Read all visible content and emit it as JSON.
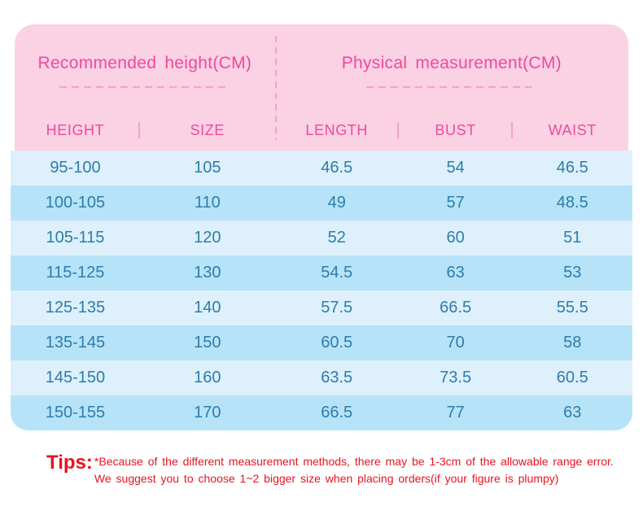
{
  "chart_data": {
    "type": "table",
    "title_left": "Recommended height(CM)",
    "title_right": "Physical measurement(CM)",
    "columns": [
      "HEIGHT",
      "SIZE",
      "LENGTH",
      "BUST",
      "WAIST"
    ],
    "rows": [
      [
        "95-100",
        "105",
        "46.5",
        "54",
        "46.5"
      ],
      [
        "100-105",
        "110",
        "49",
        "57",
        "48.5"
      ],
      [
        "105-115",
        "120",
        "52",
        "60",
        "51"
      ],
      [
        "115-125",
        "130",
        "54.5",
        "63",
        "53"
      ],
      [
        "125-135",
        "140",
        "57.5",
        "66.5",
        "55.5"
      ],
      [
        "135-145",
        "150",
        "60.5",
        "70",
        "58"
      ],
      [
        "145-150",
        "160",
        "63.5",
        "73.5",
        "60.5"
      ],
      [
        "150-155",
        "170",
        "66.5",
        "77",
        "63"
      ]
    ]
  },
  "tips": {
    "label": "Tips:",
    "line1": "*Because of the different measurement methods, there may be 1-3cm of the allowable range error.",
    "line2": "We suggest you to choose 1~2 bigger size when placing orders(if your figure is plumpy)"
  },
  "colors": {
    "pink_bg": "#fbd1e4",
    "pink_text": "#ee4a9b",
    "dash": "#f2a3cb",
    "row_light": "#ddf0fb",
    "row_dark": "#b6e3f8",
    "cell_text": "#2e7dab",
    "tips_red": "#e81320"
  }
}
